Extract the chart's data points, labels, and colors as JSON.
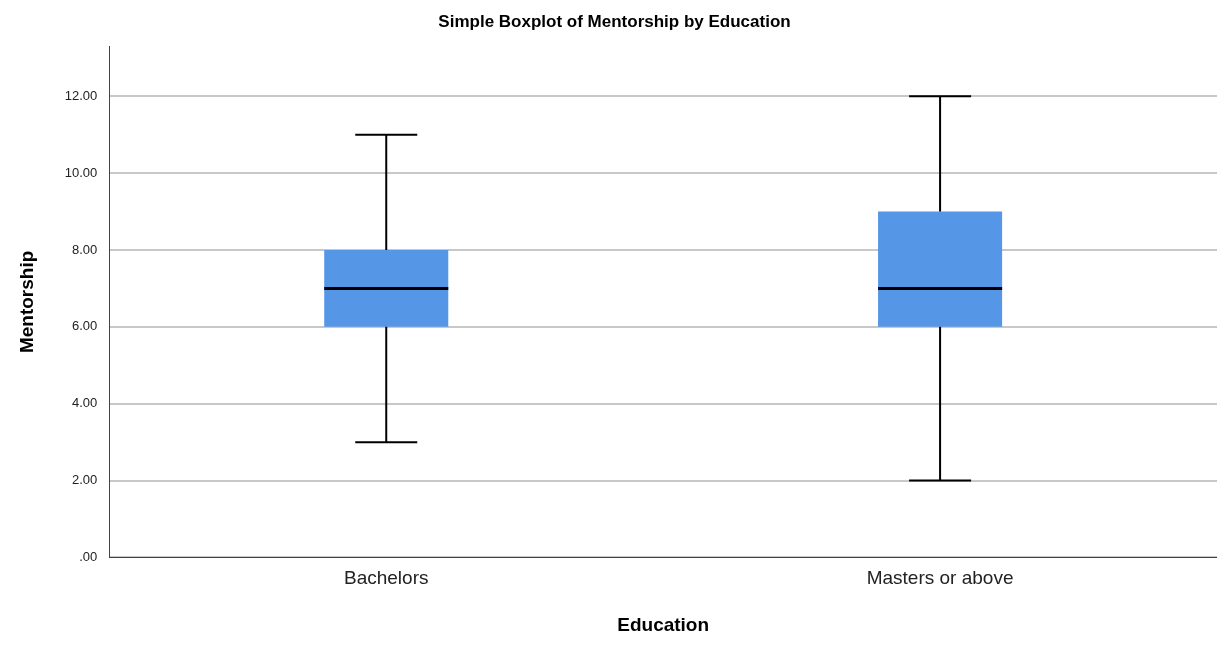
{
  "chart_data": {
    "type": "box",
    "title": "Simple Boxplot of Mentorship by Education",
    "xlabel": "Education",
    "ylabel": "Mentorship",
    "categories": [
      "Bachelors",
      "Masters or above"
    ],
    "boxes": [
      {
        "low": 3,
        "q1": 6,
        "median": 7,
        "q3": 8,
        "high": 11
      },
      {
        "low": 2,
        "q1": 6,
        "median": 7,
        "q3": 9,
        "high": 12
      }
    ],
    "color": "#5596e6",
    "ylim": [
      0,
      13.3
    ],
    "yticks": [
      {
        "value": 0,
        "label": ".00"
      },
      {
        "value": 2,
        "label": "2.00"
      },
      {
        "value": 4,
        "label": "4.00"
      },
      {
        "value": 6,
        "label": "6.00"
      },
      {
        "value": 8,
        "label": "8.00"
      },
      {
        "value": 10,
        "label": "10.00"
      },
      {
        "value": 12,
        "label": "12.00"
      }
    ],
    "grid": "y",
    "legend": false
  }
}
